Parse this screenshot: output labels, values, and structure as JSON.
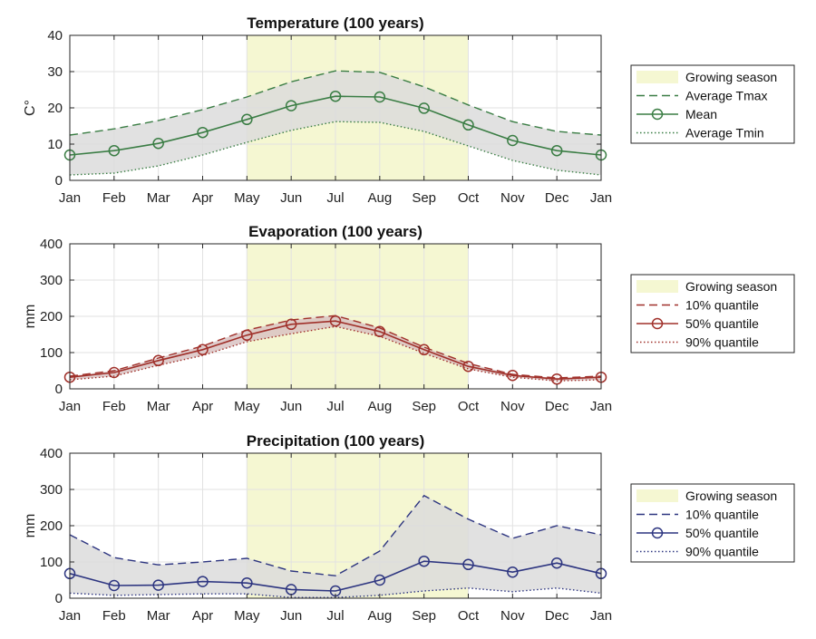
{
  "chart_data": [
    {
      "type": "line",
      "title": "Temperature (100 years)",
      "xlabel": "",
      "ylabel": "C°",
      "ylim": [
        0,
        40
      ],
      "yticks": [
        0,
        10,
        20,
        30,
        40
      ],
      "categories": [
        "Jan",
        "Feb",
        "Mar",
        "Apr",
        "May",
        "Jun",
        "Jul",
        "Aug",
        "Sep",
        "Oct",
        "Nov",
        "Dec",
        "Jan"
      ],
      "shaded_region": {
        "label": "Growing season",
        "from": "May",
        "to": "Oct",
        "color": "#f5f7d2"
      },
      "band_color": "#dcdcdc",
      "line_color": "#3a7d44",
      "grid": true,
      "legend": "right",
      "series": [
        {
          "name": "Average Tmax",
          "style": "dashed",
          "values": [
            12.5,
            14.2,
            16.5,
            19.5,
            23.0,
            27.2,
            30.2,
            29.8,
            25.8,
            20.8,
            16.2,
            13.5,
            12.5
          ]
        },
        {
          "name": "Mean",
          "style": "solid-circles",
          "values": [
            7.0,
            8.2,
            10.2,
            13.2,
            16.8,
            20.6,
            23.2,
            23.0,
            19.9,
            15.3,
            11.0,
            8.2,
            7.0
          ]
        },
        {
          "name": "Average Tmin",
          "style": "dotted",
          "values": [
            1.5,
            2.0,
            4.0,
            7.0,
            10.5,
            13.8,
            16.2,
            16.0,
            13.5,
            9.5,
            5.5,
            2.8,
            1.5
          ]
        }
      ]
    },
    {
      "type": "line",
      "title": "Evaporation (100 years)",
      "xlabel": "",
      "ylabel": "mm",
      "ylim": [
        0,
        400
      ],
      "yticks": [
        0,
        100,
        200,
        300,
        400
      ],
      "categories": [
        "Jan",
        "Feb",
        "Mar",
        "Apr",
        "May",
        "Jun",
        "Jul",
        "Aug",
        "Sep",
        "Oct",
        "Nov",
        "Dec",
        "Jan"
      ],
      "shaded_region": {
        "label": "Growing season",
        "from": "May",
        "to": "Oct",
        "color": "#f5f7d2"
      },
      "band_color": "#d9c3c3",
      "line_color": "#a0302a",
      "grid": true,
      "legend": "right",
      "series": [
        {
          "name": "10% quantile",
          "style": "dashed",
          "values": [
            35,
            50,
            85,
            118,
            162,
            190,
            202,
            168,
            115,
            70,
            40,
            30,
            35
          ]
        },
        {
          "name": "50% quantile",
          "style": "solid-circles",
          "values": [
            32,
            45,
            78,
            108,
            148,
            178,
            187,
            158,
            108,
            62,
            37,
            27,
            32
          ]
        },
        {
          "name": "90% quantile",
          "style": "dotted",
          "values": [
            25,
            35,
            65,
            92,
            130,
            152,
            172,
            145,
            98,
            55,
            32,
            22,
            25
          ]
        }
      ]
    },
    {
      "type": "line",
      "title": "Precipitation (100 years)",
      "xlabel": "",
      "ylabel": "mm",
      "ylim": [
        0,
        400
      ],
      "yticks": [
        0,
        100,
        200,
        300,
        400
      ],
      "categories": [
        "Jan",
        "Feb",
        "Mar",
        "Apr",
        "May",
        "Jun",
        "Jul",
        "Aug",
        "Sep",
        "Oct",
        "Nov",
        "Dec",
        "Jan"
      ],
      "shaded_region": {
        "label": "Growing season",
        "from": "May",
        "to": "Oct",
        "color": "#f5f7d2"
      },
      "band_color": "#dcdcdc",
      "line_color": "#2d3580",
      "grid": true,
      "legend": "right",
      "series": [
        {
          "name": "10% quantile",
          "style": "dashed",
          "values": [
            175,
            112,
            92,
            100,
            110,
            75,
            62,
            130,
            283,
            218,
            165,
            200,
            175
          ]
        },
        {
          "name": "50% quantile",
          "style": "solid-circles",
          "values": [
            68,
            35,
            36,
            46,
            42,
            24,
            20,
            50,
            102,
            93,
            72,
            97,
            68
          ]
        },
        {
          "name": "90% quantile",
          "style": "dotted",
          "values": [
            14,
            8,
            10,
            12,
            12,
            2,
            2,
            8,
            20,
            28,
            18,
            28,
            14
          ]
        }
      ]
    }
  ]
}
